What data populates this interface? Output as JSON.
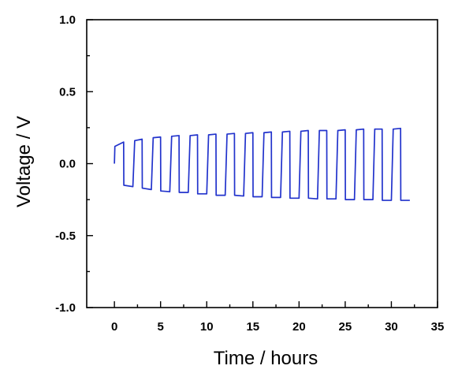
{
  "chart_data": {
    "type": "line",
    "xlabel": "Time / hours",
    "ylabel": "Voltage / V",
    "xlim": [
      -3,
      35
    ],
    "ylim": [
      -1.0,
      1.0
    ],
    "x_ticks": [
      0,
      5,
      10,
      15,
      20,
      25,
      30,
      35
    ],
    "x_tick_labels": [
      "0",
      "5",
      "10",
      "15",
      "20",
      "25",
      "30",
      "35"
    ],
    "y_ticks": [
      -1.0,
      -0.5,
      0.0,
      0.5,
      1.0
    ],
    "y_tick_labels": [
      "-1.0",
      "-0.5",
      "0.0",
      "0.5",
      "1.0"
    ],
    "grid": false,
    "series": [
      {
        "color": "#2233cc",
        "x": [
          0,
          0.05,
          1.0,
          1.02,
          2.0,
          2.2,
          3.0,
          3.02,
          4.0,
          4.2,
          5.0,
          5.02,
          6.0,
          6.2,
          7.0,
          7.02,
          8.0,
          8.2,
          9.0,
          9.02,
          10.0,
          10.2,
          11.0,
          11.02,
          12.0,
          12.2,
          13.0,
          13.02,
          14.0,
          14.2,
          15.0,
          15.02,
          16.0,
          16.2,
          17.0,
          17.02,
          18.0,
          18.2,
          19.0,
          19.02,
          20.0,
          20.2,
          21.0,
          21.02,
          22.0,
          22.2,
          23.0,
          23.02,
          24.0,
          24.2,
          25.0,
          25.02,
          26.0,
          26.2,
          27.0,
          27.02,
          28.0,
          28.2,
          29.0,
          29.02,
          30.0,
          30.2,
          31.0,
          31.02,
          32.0
        ],
        "y": [
          0.0,
          0.12,
          0.15,
          -0.15,
          -0.16,
          0.16,
          0.17,
          -0.17,
          -0.18,
          0.18,
          0.185,
          -0.19,
          -0.195,
          0.19,
          0.195,
          -0.2,
          -0.2,
          0.195,
          0.2,
          -0.21,
          -0.21,
          0.2,
          0.205,
          -0.22,
          -0.22,
          0.205,
          0.21,
          -0.22,
          -0.225,
          0.21,
          0.215,
          -0.23,
          -0.23,
          0.215,
          0.22,
          -0.235,
          -0.235,
          0.22,
          0.225,
          -0.24,
          -0.24,
          0.225,
          0.23,
          -0.24,
          -0.245,
          0.23,
          0.23,
          -0.245,
          -0.245,
          0.23,
          0.235,
          -0.25,
          -0.25,
          0.235,
          0.24,
          -0.25,
          -0.25,
          0.24,
          0.24,
          -0.255,
          -0.255,
          0.24,
          0.245,
          -0.255,
          -0.255
        ]
      }
    ]
  }
}
